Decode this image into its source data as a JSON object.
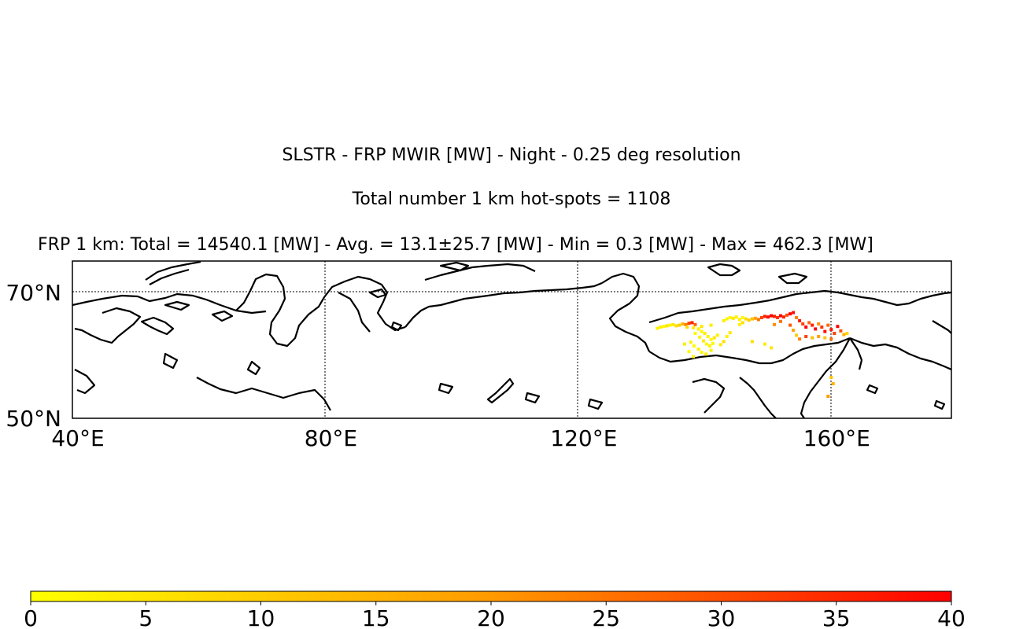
{
  "titles": {
    "line1": "SLSTR - FRP MWIR [MW] - Night - 0.25 deg resolution",
    "line2": "Total number 1 km hot-spots = 1108",
    "line3": "FRP 1 km: Total = 14540.1 [MW] - Avg. = 13.1±25.7 [MW] - Min = 0.3 [MW] - Max = 462.3 [MW]"
  },
  "map": {
    "lon_range": [
      40,
      179
    ],
    "lat_range": [
      50,
      75
    ],
    "lon_ticks": [
      {
        "value": 40,
        "label": "40°E"
      },
      {
        "value": 80,
        "label": "80°E"
      },
      {
        "value": 120,
        "label": "120°E"
      },
      {
        "value": 160,
        "label": "160°E"
      }
    ],
    "lat_ticks": [
      {
        "value": 50,
        "label": "50°N"
      },
      {
        "value": 70,
        "label": "70°N"
      }
    ],
    "gridlines": "dotted",
    "colormap": [
      "#ffff00",
      "#ff0000"
    ]
  },
  "chart_data": {
    "type": "heatmap",
    "colorbar": {
      "min": 0,
      "max": 40,
      "ticks": [
        "0",
        "5",
        "10",
        "15",
        "20",
        "25",
        "30",
        "35",
        "40"
      ]
    },
    "points": [
      {
        "lon": 132.5,
        "lat": 64.3,
        "v": 2
      },
      {
        "lon": 133.0,
        "lat": 64.5,
        "v": 3
      },
      {
        "lon": 133.5,
        "lat": 64.6,
        "v": 1
      },
      {
        "lon": 134.0,
        "lat": 64.7,
        "v": 4
      },
      {
        "lon": 134.5,
        "lat": 64.8,
        "v": 2
      },
      {
        "lon": 135.0,
        "lat": 64.9,
        "v": 3
      },
      {
        "lon": 135.5,
        "lat": 64.7,
        "v": 5
      },
      {
        "lon": 136.0,
        "lat": 64.8,
        "v": 8
      },
      {
        "lon": 136.5,
        "lat": 65.0,
        "v": 12
      },
      {
        "lon": 137.0,
        "lat": 64.9,
        "v": 20
      },
      {
        "lon": 137.5,
        "lat": 65.1,
        "v": 30
      },
      {
        "lon": 138.0,
        "lat": 65.2,
        "v": 35
      },
      {
        "lon": 138.5,
        "lat": 64.9,
        "v": 25
      },
      {
        "lon": 137.2,
        "lat": 64.5,
        "v": 6
      },
      {
        "lon": 138.2,
        "lat": 64.4,
        "v": 3
      },
      {
        "lon": 139.0,
        "lat": 64.2,
        "v": 2
      },
      {
        "lon": 139.5,
        "lat": 63.8,
        "v": 1
      },
      {
        "lon": 140.0,
        "lat": 63.5,
        "v": 3
      },
      {
        "lon": 140.5,
        "lat": 63.0,
        "v": 2
      },
      {
        "lon": 141.0,
        "lat": 62.5,
        "v": 1
      },
      {
        "lon": 141.5,
        "lat": 62.8,
        "v": 4
      },
      {
        "lon": 142.0,
        "lat": 63.2,
        "v": 2
      },
      {
        "lon": 138.5,
        "lat": 63.5,
        "v": 1
      },
      {
        "lon": 139.2,
        "lat": 62.9,
        "v": 2
      },
      {
        "lon": 139.8,
        "lat": 62.3,
        "v": 3
      },
      {
        "lon": 140.3,
        "lat": 61.8,
        "v": 1
      },
      {
        "lon": 140.8,
        "lat": 61.5,
        "v": 2
      },
      {
        "lon": 141.3,
        "lat": 61.9,
        "v": 1
      },
      {
        "lon": 142.5,
        "lat": 61.7,
        "v": 3
      },
      {
        "lon": 143.0,
        "lat": 62.2,
        "v": 5
      },
      {
        "lon": 143.5,
        "lat": 63.0,
        "v": 2
      },
      {
        "lon": 144.0,
        "lat": 63.6,
        "v": 4
      },
      {
        "lon": 137.8,
        "lat": 62.1,
        "v": 2
      },
      {
        "lon": 138.3,
        "lat": 61.5,
        "v": 1
      },
      {
        "lon": 139.0,
        "lat": 61.0,
        "v": 2
      },
      {
        "lon": 139.5,
        "lat": 60.5,
        "v": 1
      },
      {
        "lon": 140.2,
        "lat": 60.2,
        "v": 3
      },
      {
        "lon": 141.0,
        "lat": 60.8,
        "v": 2
      },
      {
        "lon": 136.8,
        "lat": 61.8,
        "v": 3
      },
      {
        "lon": 137.5,
        "lat": 60.6,
        "v": 1
      },
      {
        "lon": 138.2,
        "lat": 59.8,
        "v": 2
      },
      {
        "lon": 143.0,
        "lat": 65.5,
        "v": 3
      },
      {
        "lon": 143.5,
        "lat": 65.8,
        "v": 2
      },
      {
        "lon": 144.0,
        "lat": 66.0,
        "v": 1
      },
      {
        "lon": 144.5,
        "lat": 65.9,
        "v": 4
      },
      {
        "lon": 145.0,
        "lat": 66.1,
        "v": 2
      },
      {
        "lon": 145.5,
        "lat": 65.7,
        "v": 3
      },
      {
        "lon": 146.0,
        "lat": 66.0,
        "v": 1
      },
      {
        "lon": 146.5,
        "lat": 65.8,
        "v": 6
      },
      {
        "lon": 147.0,
        "lat": 65.6,
        "v": 8
      },
      {
        "lon": 147.5,
        "lat": 65.8,
        "v": 10
      },
      {
        "lon": 148.0,
        "lat": 65.9,
        "v": 15
      },
      {
        "lon": 148.5,
        "lat": 65.7,
        "v": 22
      },
      {
        "lon": 149.0,
        "lat": 66.0,
        "v": 30
      },
      {
        "lon": 149.5,
        "lat": 66.2,
        "v": 35
      },
      {
        "lon": 150.0,
        "lat": 66.1,
        "v": 38
      },
      {
        "lon": 150.5,
        "lat": 66.3,
        "v": 40
      },
      {
        "lon": 151.0,
        "lat": 66.2,
        "v": 36
      },
      {
        "lon": 151.5,
        "lat": 66.0,
        "v": 32
      },
      {
        "lon": 152.0,
        "lat": 66.3,
        "v": 40
      },
      {
        "lon": 152.5,
        "lat": 66.1,
        "v": 34
      },
      {
        "lon": 153.0,
        "lat": 66.4,
        "v": 28
      },
      {
        "lon": 153.5,
        "lat": 66.6,
        "v": 40
      },
      {
        "lon": 154.0,
        "lat": 66.8,
        "v": 38
      },
      {
        "lon": 154.5,
        "lat": 66.0,
        "v": 20
      },
      {
        "lon": 155.0,
        "lat": 65.5,
        "v": 36
      },
      {
        "lon": 155.5,
        "lat": 65.0,
        "v": 30
      },
      {
        "lon": 156.0,
        "lat": 64.5,
        "v": 40
      },
      {
        "lon": 156.5,
        "lat": 65.2,
        "v": 25
      },
      {
        "lon": 157.0,
        "lat": 64.8,
        "v": 35
      },
      {
        "lon": 157.5,
        "lat": 64.2,
        "v": 40
      },
      {
        "lon": 158.0,
        "lat": 65.0,
        "v": 18
      },
      {
        "lon": 158.5,
        "lat": 64.5,
        "v": 32
      },
      {
        "lon": 159.0,
        "lat": 63.8,
        "v": 38
      },
      {
        "lon": 159.5,
        "lat": 64.8,
        "v": 24
      },
      {
        "lon": 160.0,
        "lat": 64.1,
        "v": 36
      },
      {
        "lon": 160.5,
        "lat": 63.5,
        "v": 30
      },
      {
        "lon": 161.0,
        "lat": 64.6,
        "v": 40
      },
      {
        "lon": 161.5,
        "lat": 63.9,
        "v": 28
      },
      {
        "lon": 162.0,
        "lat": 63.3,
        "v": 12
      },
      {
        "lon": 162.5,
        "lat": 63.5,
        "v": 6
      },
      {
        "lon": 153.5,
        "lat": 64.8,
        "v": 26
      },
      {
        "lon": 154.0,
        "lat": 64.0,
        "v": 14
      },
      {
        "lon": 154.5,
        "lat": 63.2,
        "v": 8
      },
      {
        "lon": 155.0,
        "lat": 62.6,
        "v": 20
      },
      {
        "lon": 156.0,
        "lat": 63.0,
        "v": 30
      },
      {
        "lon": 157.0,
        "lat": 62.8,
        "v": 10
      },
      {
        "lon": 158.0,
        "lat": 63.0,
        "v": 15
      },
      {
        "lon": 159.0,
        "lat": 62.8,
        "v": 9
      },
      {
        "lon": 160.0,
        "lat": 62.6,
        "v": 22
      },
      {
        "lon": 147.5,
        "lat": 62.2,
        "v": 5
      },
      {
        "lon": 149.5,
        "lat": 61.8,
        "v": 3
      },
      {
        "lon": 150.5,
        "lat": 61.2,
        "v": 4
      },
      {
        "lon": 160.0,
        "lat": 56.5,
        "v": 9
      },
      {
        "lon": 160.3,
        "lat": 55.5,
        "v": 12
      },
      {
        "lon": 159.5,
        "lat": 53.5,
        "v": 15
      },
      {
        "lon": 139.5,
        "lat": 64.6,
        "v": 4
      },
      {
        "lon": 141.0,
        "lat": 64.8,
        "v": 3
      },
      {
        "lon": 145.5,
        "lat": 64.9,
        "v": 2
      },
      {
        "lon": 146.0,
        "lat": 65.2,
        "v": 5
      },
      {
        "lon": 152.0,
        "lat": 65.4,
        "v": 22
      },
      {
        "lon": 151.0,
        "lat": 64.9,
        "v": 18
      }
    ]
  }
}
